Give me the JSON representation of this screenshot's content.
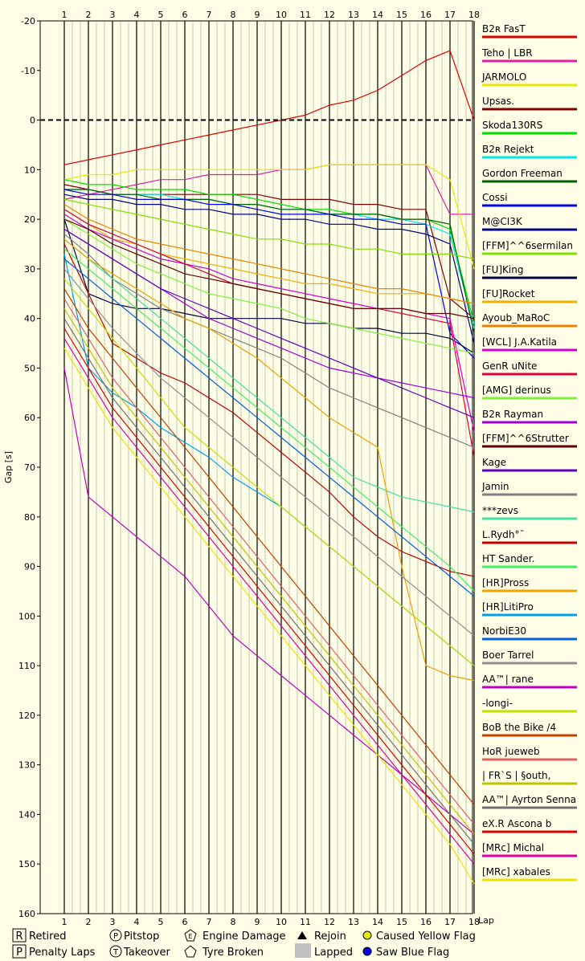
{
  "chart_data": {
    "type": "line",
    "xlabel": "Lap",
    "ylabel": "Gap [s]",
    "x": [
      1,
      2,
      3,
      4,
      5,
      6,
      7,
      8,
      9,
      10,
      11,
      12,
      13,
      14,
      15,
      16,
      17,
      18
    ],
    "ylim": [
      -20,
      160
    ],
    "yticks": [
      -20,
      -10,
      0,
      10,
      20,
      30,
      40,
      50,
      60,
      70,
      80,
      90,
      100,
      110,
      120,
      130,
      140,
      150,
      160
    ],
    "grid": true,
    "legend_position": "right",
    "series": [
      {
        "name": "B2ʀ FasT",
        "color": "#e00000",
        "values": [
          9,
          8,
          7,
          6,
          5,
          4,
          3,
          2,
          1,
          0,
          -1,
          -3,
          -4,
          -6,
          -9,
          -12,
          -14,
          0
        ]
      },
      {
        "name": "Teho | LBR",
        "color": "#e020a0",
        "values": [
          16,
          15,
          14,
          13,
          12,
          12,
          11,
          11,
          11,
          10,
          10,
          9,
          9,
          9,
          9,
          9,
          19,
          19
        ]
      },
      {
        "name": "JARMOLO",
        "color": "#e8e800",
        "values": [
          12,
          11,
          11,
          10,
          10,
          10,
          10,
          10,
          10,
          10,
          10,
          9,
          9,
          9,
          9,
          9,
          12,
          30
        ]
      },
      {
        "name": "Upsas.",
        "color": "#800000",
        "values": [
          13,
          14,
          15,
          15,
          15,
          15,
          15,
          15,
          15,
          16,
          16,
          16,
          17,
          17,
          18,
          18,
          36,
          40
        ]
      },
      {
        "name": "Skoda130RS",
        "color": "#00e000",
        "values": [
          12,
          13,
          13,
          14,
          14,
          14,
          15,
          15,
          16,
          17,
          18,
          18,
          19,
          19,
          20,
          20,
          22,
          41
        ]
      },
      {
        "name": "B2ʀ Rejekt",
        "color": "#00e8e8",
        "values": [
          14,
          14,
          15,
          15,
          15,
          16,
          16,
          17,
          17,
          18,
          18,
          19,
          19,
          20,
          20,
          21,
          23,
          42
        ]
      },
      {
        "name": "Gordon Freeman",
        "color": "#006000",
        "values": [
          14,
          14,
          15,
          15,
          16,
          16,
          16,
          17,
          17,
          18,
          18,
          19,
          19,
          19,
          20,
          20,
          21,
          43
        ]
      },
      {
        "name": "Cossi",
        "color": "#0000e0",
        "values": [
          14,
          15,
          15,
          16,
          16,
          16,
          17,
          17,
          18,
          19,
          19,
          19,
          20,
          20,
          21,
          21,
          43,
          48
        ]
      },
      {
        "name": "M@CI3K",
        "color": "#000080",
        "values": [
          15,
          16,
          16,
          17,
          17,
          18,
          18,
          19,
          19,
          20,
          20,
          21,
          21,
          22,
          22,
          23,
          25,
          45
        ]
      },
      {
        "name": "[FFM]^^6sermilan",
        "color": "#80e000",
        "values": [
          16,
          17,
          18,
          19,
          20,
          21,
          22,
          23,
          24,
          24,
          25,
          25,
          26,
          26,
          27,
          27,
          27,
          28
        ]
      },
      {
        "name": "[FU]King",
        "color": "#000040",
        "values": [
          20,
          35,
          37,
          38,
          38,
          39,
          40,
          40,
          40,
          40,
          41,
          41,
          42,
          42,
          43,
          43,
          44,
          47
        ]
      },
      {
        "name": "[FU]Rocket",
        "color": "#f0b000",
        "values": [
          18,
          21,
          24,
          25,
          27,
          28,
          29,
          30,
          31,
          32,
          33,
          33,
          34,
          35,
          35,
          35,
          36,
          37
        ]
      },
      {
        "name": "Ayoub_MaRoC",
        "color": "#f08000",
        "values": [
          17,
          20,
          22,
          24,
          25,
          26,
          27,
          28,
          29,
          30,
          31,
          32,
          33,
          34,
          34,
          35,
          36,
          37
        ]
      },
      {
        "name": "[WCL] J.A.Katila",
        "color": "#d000d0",
        "values": [
          19,
          22,
          24,
          26,
          28,
          29,
          30,
          32,
          33,
          34,
          35,
          36,
          37,
          38,
          38,
          39,
          40,
          63
        ]
      },
      {
        "name": "GenR uNite",
        "color": "#e00040",
        "values": [
          18,
          21,
          23,
          25,
          27,
          29,
          31,
          33,
          34,
          35,
          36,
          37,
          38,
          38,
          39,
          40,
          41,
          68
        ]
      },
      {
        "name": "[AMG] derinus",
        "color": "#80f040",
        "values": [
          20,
          23,
          26,
          29,
          31,
          33,
          35,
          36,
          37,
          38,
          40,
          41,
          42,
          43,
          44,
          45,
          46,
          47
        ]
      },
      {
        "name": "B2ʀ Rayman",
        "color": "#a000e0",
        "values": [
          22,
          25,
          28,
          31,
          34,
          37,
          40,
          42,
          44,
          46,
          48,
          50,
          51,
          52,
          53,
          54,
          55,
          56
        ]
      },
      {
        "name": "[FFM]^^6Strutter",
        "color": "#600000",
        "values": [
          20,
          22,
          25,
          27,
          29,
          31,
          32,
          33,
          34,
          35,
          36,
          37,
          38,
          38,
          38,
          39,
          39,
          40
        ]
      },
      {
        "name": "Kage",
        "color": "#6000c0",
        "values": [
          22,
          25,
          28,
          31,
          34,
          36,
          38,
          40,
          42,
          44,
          46,
          48,
          50,
          52,
          54,
          56,
          58,
          60
        ]
      },
      {
        "name": "Jamin",
        "color": "#808080",
        "values": [
          23,
          27,
          32,
          35,
          38,
          40,
          42,
          44,
          46,
          48,
          51,
          54,
          56,
          58,
          60,
          62,
          64,
          66
        ]
      },
      {
        "name": "***zevs",
        "color": "#40e0a0",
        "values": [
          24,
          28,
          32,
          36,
          40,
          44,
          48,
          52,
          56,
          60,
          64,
          68,
          72,
          74,
          76,
          77,
          78,
          79
        ]
      },
      {
        "name": "L.Rydh°¯",
        "color": "#c00000",
        "values": [
          25,
          35,
          45,
          48,
          51,
          53,
          56,
          59,
          63,
          67,
          71,
          75,
          80,
          84,
          87,
          89,
          91,
          92
        ]
      },
      {
        "name": "HT Sander.",
        "color": "#40f060",
        "values": [
          26,
          30,
          34,
          38,
          42,
          46,
          50,
          54,
          58,
          62,
          66,
          70,
          74,
          78,
          82,
          86,
          90,
          95
        ]
      },
      {
        "name": "[HR]Pross",
        "color": "#f0a000",
        "values": [
          24,
          28,
          31,
          34,
          37,
          40,
          42,
          45,
          48,
          52,
          56,
          60,
          63,
          66,
          90,
          110,
          112,
          113
        ]
      },
      {
        "name": "[HR]LitiPro",
        "color": "#00a0f0",
        "values": [
          27,
          50,
          55,
          58,
          62,
          65,
          68,
          72,
          75,
          78,
          82,
          86,
          90,
          94,
          98,
          102,
          106,
          110
        ]
      },
      {
        "name": "NorbiE30",
        "color": "#0060e0",
        "values": [
          28,
          32,
          36,
          40,
          44,
          48,
          52,
          56,
          60,
          64,
          68,
          72,
          76,
          80,
          84,
          88,
          92,
          96
        ]
      },
      {
        "name": "Boer Tarrel",
        "color": "#909090",
        "values": [
          30,
          36,
          42,
          47,
          52,
          56,
          60,
          64,
          68,
          72,
          76,
          80,
          84,
          88,
          92,
          96,
          100,
          104
        ]
      },
      {
        "name": "AA™| rane",
        "color": "#c000c0",
        "values": [
          50,
          76,
          80,
          84,
          88,
          92,
          98,
          104,
          108,
          112,
          116,
          120,
          124,
          128,
          132,
          136,
          140,
          144
        ]
      },
      {
        "name": "-longi-",
        "color": "#c0e000",
        "values": [
          32,
          38,
          44,
          50,
          56,
          62,
          66,
          70,
          74,
          78,
          82,
          86,
          90,
          94,
          98,
          102,
          106,
          110
        ]
      },
      {
        "name": "BoB the Bike /4",
        "color": "#c04000",
        "values": [
          34,
          42,
          48,
          54,
          60,
          66,
          72,
          78,
          84,
          90,
          96,
          102,
          108,
          114,
          120,
          126,
          132,
          138
        ]
      },
      {
        "name": "HoR jueweb",
        "color": "#e06060",
        "values": [
          36,
          44,
          52,
          58,
          64,
          70,
          76,
          82,
          88,
          94,
          100,
          106,
          112,
          118,
          124,
          130,
          136,
          142
        ]
      },
      {
        "name": "| FR`S | §outh,",
        "color": "#c0c000",
        "values": [
          38,
          46,
          54,
          60,
          66,
          72,
          78,
          84,
          90,
          96,
          102,
          108,
          114,
          120,
          126,
          132,
          138,
          144
        ]
      },
      {
        "name": "AA™| Ayrton Senna",
        "color": "#707070",
        "values": [
          40,
          48,
          56,
          62,
          68,
          74,
          80,
          86,
          92,
          98,
          104,
          110,
          116,
          122,
          128,
          134,
          140,
          146
        ]
      },
      {
        "name": "eX.R Ascona b",
        "color": "#e00000",
        "values": [
          42,
          50,
          58,
          64,
          70,
          76,
          82,
          88,
          94,
          100,
          106,
          112,
          118,
          124,
          130,
          136,
          142,
          148
        ]
      },
      {
        "name": "[MRc] Michal",
        "color": "#e000a0",
        "values": [
          44,
          52,
          60,
          66,
          72,
          78,
          84,
          90,
          96,
          102,
          108,
          114,
          120,
          126,
          132,
          138,
          144,
          150
        ]
      },
      {
        "name": "[MRc] xabales",
        "color": "#f0e000",
        "values": [
          46,
          54,
          62,
          68,
          74,
          80,
          86,
          92,
          98,
          104,
          110,
          116,
          122,
          128,
          134,
          140,
          146,
          154
        ]
      }
    ],
    "key": {
      "retired": "Retired",
      "penalty": "Penalty Laps",
      "pitstop": "Pitstop",
      "takeover": "Takeover",
      "engine": "Engine Damage",
      "tyre": "Tyre Broken",
      "rejoin": "Rejoin",
      "lapped": "Lapped",
      "yellow": "Caused Yellow Flag",
      "blue": "Saw Blue Flag"
    },
    "key_letters": {
      "retired": "R",
      "penalty": "P",
      "pitstop": "P",
      "takeover": "T",
      "engine": "E"
    }
  }
}
